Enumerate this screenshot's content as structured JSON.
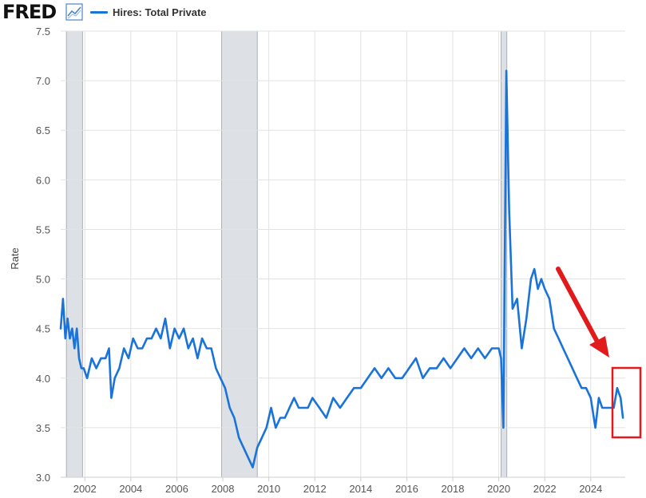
{
  "header": {
    "brand": "FRED",
    "brand_icon": "line-chart-icon",
    "legend_label": "Hires: Total Private"
  },
  "colors": {
    "series": "#1a73d8",
    "recession": "#dde1e6",
    "grid": "#e2e2e2",
    "arrow": "#e11b1b",
    "highlight_box": "#e11b1b"
  },
  "annotations": {
    "arrow_icon": "red-arrow-icon",
    "highlight": "red-rectangle-highlight"
  },
  "chart_data": {
    "type": "line",
    "title": "",
    "xlabel": "",
    "ylabel": "Rate",
    "xlim": [
      2000.95,
      2025.5
    ],
    "ylim": [
      3.0,
      7.5
    ],
    "y_ticks": [
      "3.0",
      "3.5",
      "4.0",
      "4.5",
      "5.0",
      "5.5",
      "6.0",
      "6.5",
      "7.0",
      "7.5"
    ],
    "x_ticks": [
      "2002",
      "2004",
      "2006",
      "2008",
      "2010",
      "2012",
      "2014",
      "2016",
      "2018",
      "2020",
      "2022",
      "2024"
    ],
    "grid": true,
    "legend": "top-left",
    "recessions": [
      [
        2001.2,
        2001.9
      ],
      [
        2007.95,
        2009.5
      ],
      [
        2020.1,
        2020.35
      ]
    ],
    "series": [
      {
        "name": "Hires: Total Private",
        "x": [
          2000.95,
          2001.05,
          2001.15,
          2001.25,
          2001.35,
          2001.45,
          2001.55,
          2001.65,
          2001.75,
          2001.85,
          2001.95,
          2002.1,
          2002.3,
          2002.5,
          2002.7,
          2002.9,
          2003.05,
          2003.15,
          2003.3,
          2003.5,
          2003.7,
          2003.9,
          2004.1,
          2004.3,
          2004.5,
          2004.7,
          2004.9,
          2005.1,
          2005.3,
          2005.5,
          2005.7,
          2005.9,
          2006.1,
          2006.3,
          2006.5,
          2006.7,
          2006.9,
          2007.1,
          2007.3,
          2007.5,
          2007.7,
          2007.9,
          2008.1,
          2008.3,
          2008.5,
          2008.7,
          2008.9,
          2009.1,
          2009.3,
          2009.5,
          2009.7,
          2009.9,
          2010.1,
          2010.3,
          2010.5,
          2010.7,
          2010.9,
          2011.1,
          2011.3,
          2011.5,
          2011.7,
          2011.9,
          2012.2,
          2012.5,
          2012.8,
          2013.1,
          2013.4,
          2013.7,
          2014.0,
          2014.3,
          2014.6,
          2014.9,
          2015.2,
          2015.5,
          2015.8,
          2016.1,
          2016.4,
          2016.7,
          2017.0,
          2017.3,
          2017.6,
          2017.9,
          2018.2,
          2018.5,
          2018.8,
          2019.1,
          2019.4,
          2019.7,
          2020.0,
          2020.1,
          2020.2,
          2020.33,
          2020.45,
          2020.6,
          2020.8,
          2021.0,
          2021.2,
          2021.4,
          2021.55,
          2021.7,
          2021.85,
          2022.0,
          2022.2,
          2022.4,
          2022.6,
          2022.8,
          2023.0,
          2023.2,
          2023.4,
          2023.6,
          2023.8,
          2024.0,
          2024.2,
          2024.35,
          2024.5,
          2024.65,
          2024.8,
          2025.0,
          2025.15,
          2025.3,
          2025.4
        ],
        "values": [
          4.5,
          4.8,
          4.4,
          4.6,
          4.4,
          4.5,
          4.3,
          4.5,
          4.2,
          4.1,
          4.1,
          4.0,
          4.2,
          4.1,
          4.2,
          4.2,
          4.3,
          3.8,
          4.0,
          4.1,
          4.3,
          4.2,
          4.4,
          4.3,
          4.3,
          4.4,
          4.4,
          4.5,
          4.4,
          4.6,
          4.3,
          4.5,
          4.4,
          4.5,
          4.3,
          4.4,
          4.2,
          4.4,
          4.3,
          4.3,
          4.1,
          4.0,
          3.9,
          3.7,
          3.6,
          3.4,
          3.3,
          3.2,
          3.1,
          3.3,
          3.4,
          3.5,
          3.7,
          3.5,
          3.6,
          3.6,
          3.7,
          3.8,
          3.7,
          3.7,
          3.7,
          3.8,
          3.7,
          3.6,
          3.8,
          3.7,
          3.8,
          3.9,
          3.9,
          4.0,
          4.1,
          4.0,
          4.1,
          4.0,
          4.0,
          4.1,
          4.2,
          4.0,
          4.1,
          4.1,
          4.2,
          4.1,
          4.2,
          4.3,
          4.2,
          4.3,
          4.2,
          4.3,
          4.3,
          4.2,
          3.5,
          7.1,
          5.7,
          4.7,
          4.8,
          4.3,
          4.6,
          5.0,
          5.1,
          4.9,
          5.0,
          4.9,
          4.8,
          4.5,
          4.4,
          4.3,
          4.2,
          4.1,
          4.0,
          3.9,
          3.9,
          3.8,
          3.5,
          3.8,
          3.7,
          3.7,
          3.7,
          3.7,
          3.9,
          3.8,
          3.6
        ]
      }
    ]
  }
}
